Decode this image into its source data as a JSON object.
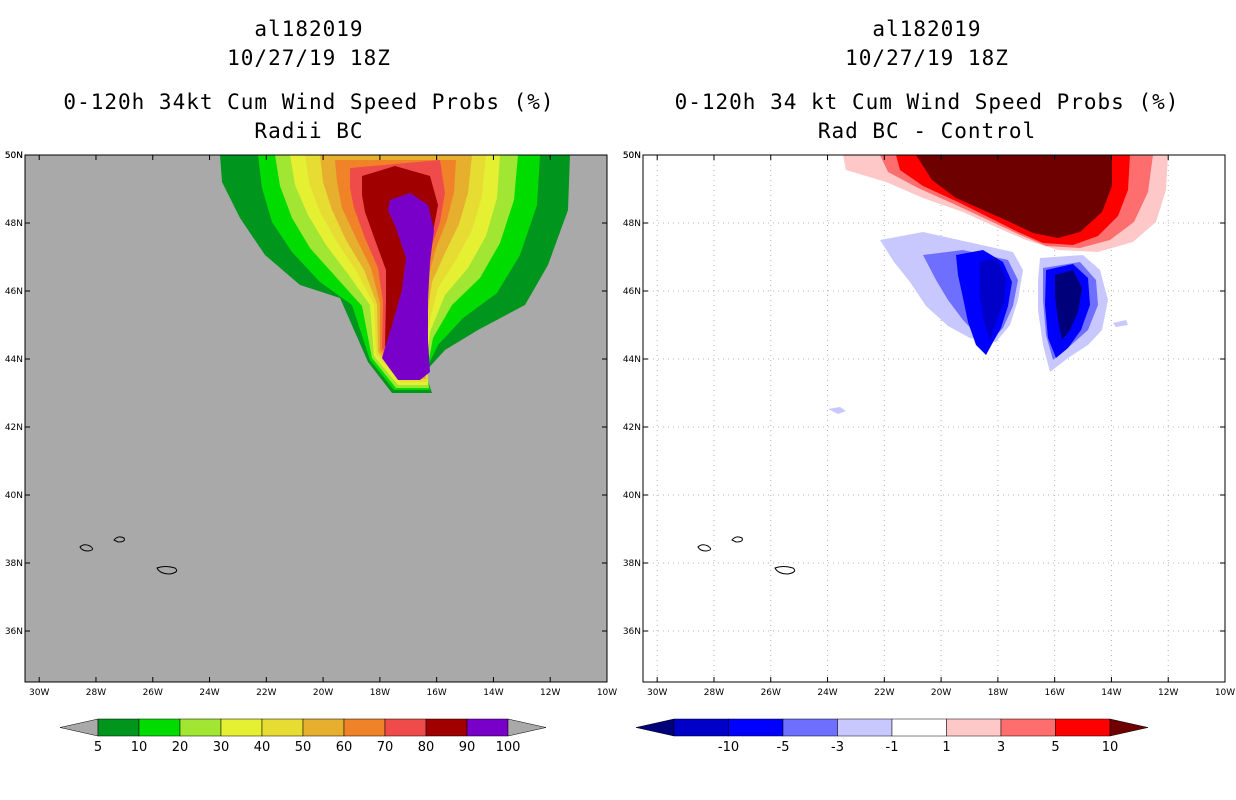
{
  "chart_data": [
    {
      "type": "filled-contour-map",
      "storm_id": "al182019",
      "datetime": "10/27/19 18Z",
      "title": "0-120h 34kt Cum Wind Speed Probs (%)",
      "subtitle": "Radii BC",
      "x_range_deg_lon": [
        -30.5,
        -10
      ],
      "y_range_deg_lat": [
        34.5,
        50
      ],
      "x_ticks": [
        "30W",
        "28W",
        "26W",
        "24W",
        "22W",
        "20W",
        "18W",
        "16W",
        "14W",
        "12W",
        "10W"
      ],
      "y_ticks": [
        "36N",
        "38N",
        "40N",
        "42N",
        "44N",
        "46N",
        "48N",
        "50N"
      ],
      "background": "#a9a9a9",
      "colorbar": {
        "levels": [
          "5",
          "10",
          "20",
          "30",
          "40",
          "50",
          "60",
          "70",
          "80",
          "90",
          "100"
        ],
        "colors": [
          "#00961e",
          "#00dc00",
          "#a0e632",
          "#e6f032",
          "#e6dc32",
          "#e6af2d",
          "#f08228",
          "#f04b4b",
          "#a00000",
          "#7800c8"
        ],
        "under_color": "#a9a9a9",
        "over_color": "#a9a9a9"
      },
      "plume_peak_band": "90-100 over roughly 18W-16W, 43N-49N"
    },
    {
      "type": "filled-contour-map",
      "storm_id": "al182019",
      "datetime": "10/27/19 18Z",
      "title": "0-120h 34 kt Cum Wind Speed Probs (%)",
      "subtitle": "Rad BC - Control",
      "x_range_deg_lon": [
        -30.5,
        -10
      ],
      "y_range_deg_lat": [
        34.5,
        50
      ],
      "x_ticks": [
        "30W",
        "28W",
        "26W",
        "24W",
        "22W",
        "20W",
        "18W",
        "16W",
        "14W",
        "12W",
        "10W"
      ],
      "y_ticks": [
        "36N",
        "38N",
        "40N",
        "42N",
        "44N",
        "46N",
        "48N",
        "50N"
      ],
      "background": "#ffffff",
      "grid": true,
      "colorbar": {
        "levels": [
          "-10",
          "-5",
          "-3",
          "-1",
          "1",
          "3",
          "5",
          "10"
        ],
        "colors": [
          "#0000c8",
          "#0000ff",
          "#6e6eff",
          "#c8c8ff",
          "#ffffff",
          "#ffc8c8",
          "#ff6e6e",
          "#ff0000"
        ],
        "under_color": "#00007a",
        "over_color": "#6e0000"
      },
      "positive_center": "greater than 10 near 19W-14W, 48N-50N",
      "negative_centers": [
        "less than -10 near 18W, 44N-47N",
        "less than -10 near 16W, 44N-46N"
      ]
    }
  ]
}
